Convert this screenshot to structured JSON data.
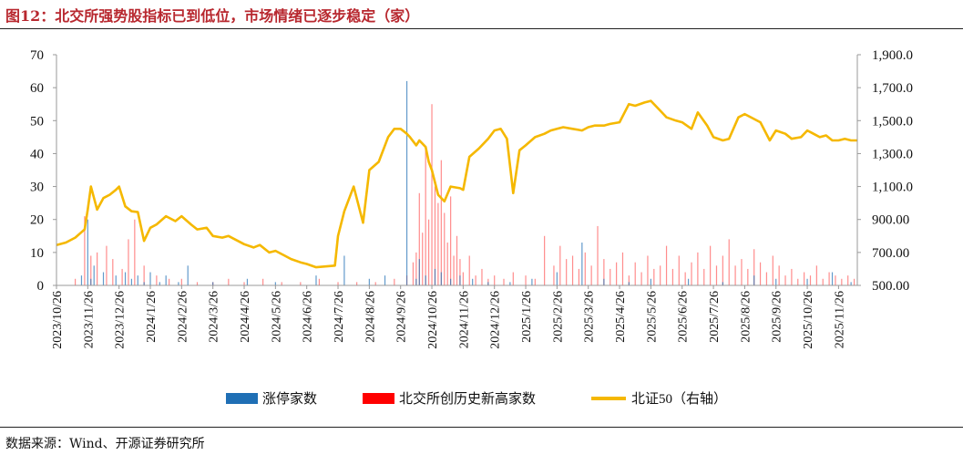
{
  "title": "图12：北交所强势股指标已到低位，市场情绪已逐步稳定（家）",
  "source": "数据来源：Wind、开源证券研究所",
  "colors": {
    "limit_up": "#1f6fb5",
    "new_high": "#ff0000",
    "index_line": "#f5b800",
    "title": "#b8282f"
  },
  "chart_data": {
    "type": "bar",
    "title": "图12：北交所强势股指标已到低位，市场情绪已逐步稳定（家）",
    "xlabel": "",
    "ylabel": "",
    "ylim": [
      0,
      70
    ],
    "y2lim": [
      500,
      1900
    ],
    "yticks": [
      "0",
      "10",
      "20",
      "30",
      "40",
      "50",
      "60",
      "70"
    ],
    "y2ticks": [
      "500.00",
      "700.00",
      "900.00",
      "1,100.0",
      "1,300.0",
      "1,500.0",
      "1,700.0",
      "1,900.0"
    ],
    "grid": false,
    "legend": "bottom",
    "categories": [
      "2023/10/26",
      "2023/11/26",
      "2023/12/26",
      "2024/1/26",
      "2024/2/26",
      "2024/3/26",
      "2024/4/26",
      "2024/5/26",
      "2024/6/26",
      "2024/7/26",
      "2024/8/26",
      "2024/9/26",
      "2024/10/26",
      "2024/11/26",
      "2024/12/26",
      "2025/1/26",
      "2025/2/26",
      "2025/3/26",
      "2025/4/26",
      "2025/5/26",
      "2025/6/26",
      "2025/7/26",
      "2025/8/26",
      "2025/9/26",
      "2025/10/26",
      "2025/11/26"
    ],
    "series": [
      {
        "name": "涨停家数",
        "type": "bar",
        "axis": "left",
        "x": [
          0.8,
          1.0,
          1.1,
          1.2,
          1.5,
          1.9,
          2.2,
          2.4,
          2.6,
          2.8,
          3.0,
          3.3,
          3.5,
          3.9,
          4.2,
          5.0,
          6.1,
          7.0,
          8.3,
          9.2,
          10.0,
          10.5,
          11.2,
          11.5,
          11.6,
          11.8,
          12.1,
          12.3,
          12.6,
          12.9,
          13.3,
          13.8,
          14.5,
          15.2,
          16.0,
          16.8,
          17.5,
          18.3,
          19.0,
          20.2,
          21.3,
          22.3,
          23.0,
          24.0,
          24.8,
          25.4
        ],
        "values": [
          3,
          20,
          2,
          6,
          4,
          3,
          4,
          2,
          3,
          1,
          4,
          1,
          3,
          1,
          6,
          1,
          2,
          1,
          3,
          9,
          2,
          3,
          62,
          2,
          8,
          3,
          5,
          4,
          2,
          3,
          2,
          1,
          1,
          2,
          4,
          13,
          2,
          1,
          2,
          2,
          1,
          3,
          2,
          2,
          4,
          1
        ]
      },
      {
        "name": "北交所创历史新高家数",
        "type": "bar",
        "axis": "left",
        "x": [
          0.6,
          0.9,
          1.1,
          1.3,
          1.6,
          1.8,
          2.1,
          2.3,
          2.5,
          2.8,
          3.2,
          3.6,
          4.0,
          4.5,
          5.0,
          5.5,
          6.0,
          6.6,
          7.2,
          7.8,
          8.4,
          9.0,
          9.6,
          10.2,
          10.8,
          11.2,
          11.4,
          11.5,
          11.6,
          11.7,
          11.8,
          11.9,
          12.0,
          12.1,
          12.2,
          12.3,
          12.4,
          12.5,
          12.6,
          12.7,
          12.8,
          12.9,
          13.0,
          13.2,
          13.4,
          13.6,
          13.8,
          14.0,
          14.3,
          14.6,
          15.0,
          15.3,
          15.6,
          15.9,
          16.1,
          16.3,
          16.5,
          16.7,
          16.9,
          17.1,
          17.3,
          17.5,
          17.7,
          17.9,
          18.1,
          18.3,
          18.5,
          18.7,
          18.9,
          19.1,
          19.3,
          19.5,
          19.7,
          19.9,
          20.1,
          20.3,
          20.5,
          20.7,
          20.9,
          21.1,
          21.3,
          21.5,
          21.7,
          21.9,
          22.1,
          22.3,
          22.5,
          22.7,
          22.9,
          23.1,
          23.3,
          23.5,
          23.7,
          23.9,
          24.1,
          24.3,
          24.5,
          24.7,
          24.9,
          25.1,
          25.3,
          25.5
        ],
        "values": [
          2,
          21,
          9,
          10,
          12,
          8,
          5,
          14,
          20,
          6,
          3,
          2,
          2,
          1,
          1,
          2,
          1,
          2,
          1,
          1,
          2,
          1,
          1,
          1,
          2,
          3,
          7,
          10,
          28,
          16,
          42,
          20,
          55,
          30,
          25,
          38,
          22,
          13,
          27,
          9,
          15,
          8,
          4,
          9,
          3,
          5,
          2,
          3,
          2,
          4,
          3,
          2,
          15,
          6,
          12,
          8,
          9,
          5,
          10,
          6,
          18,
          8,
          5,
          7,
          10,
          3,
          7,
          4,
          9,
          5,
          6,
          12,
          5,
          9,
          4,
          7,
          10,
          5,
          12,
          6,
          9,
          14,
          6,
          8,
          5,
          11,
          7,
          4,
          9,
          6,
          3,
          5,
          2,
          4,
          3,
          6,
          2,
          4,
          3,
          2,
          3,
          2
        ]
      },
      {
        "name": "北证50（右轴）",
        "type": "line",
        "axis": "right",
        "x": [
          0.0,
          0.3,
          0.6,
          0.9,
          1.0,
          1.1,
          1.3,
          1.5,
          1.7,
          1.9,
          2.0,
          2.2,
          2.4,
          2.6,
          2.8,
          3.0,
          3.2,
          3.5,
          3.8,
          4.0,
          4.3,
          4.5,
          4.8,
          5.0,
          5.3,
          5.5,
          5.8,
          6.0,
          6.3,
          6.5,
          6.8,
          7.0,
          7.3,
          7.5,
          7.8,
          8.0,
          8.3,
          8.6,
          8.9,
          9.0,
          9.2,
          9.5,
          9.8,
          10.0,
          10.3,
          10.6,
          10.8,
          11.0,
          11.2,
          11.3,
          11.5,
          11.6,
          11.8,
          11.9,
          12.0,
          12.2,
          12.4,
          12.6,
          12.9,
          13.0,
          13.2,
          13.5,
          13.8,
          14.0,
          14.2,
          14.4,
          14.6,
          14.8,
          15.0,
          15.3,
          15.6,
          15.8,
          16.0,
          16.2,
          16.5,
          16.8,
          17.0,
          17.2,
          17.4,
          17.5,
          17.7,
          18.0,
          18.3,
          18.5,
          18.8,
          19.0,
          19.3,
          19.5,
          19.8,
          20.0,
          20.3,
          20.5,
          20.8,
          21.0,
          21.3,
          21.5,
          21.8,
          22.0,
          22.3,
          22.5,
          22.8,
          23.0,
          23.3,
          23.5,
          23.8,
          24.0,
          24.2,
          24.4,
          24.6,
          24.8,
          25.0,
          25.2,
          25.4,
          25.6
        ],
        "values": [
          745,
          760,
          790,
          840,
          960,
          1100,
          960,
          1030,
          1050,
          1080,
          1100,
          980,
          950,
          945,
          770,
          850,
          870,
          920,
          890,
          920,
          870,
          840,
          850,
          800,
          790,
          800,
          770,
          750,
          730,
          745,
          700,
          710,
          680,
          660,
          640,
          630,
          610,
          615,
          620,
          800,
          950,
          1100,
          880,
          1200,
          1250,
          1400,
          1450,
          1450,
          1420,
          1400,
          1350,
          1380,
          1340,
          1250,
          1200,
          1050,
          1010,
          1100,
          1090,
          1080,
          1280,
          1330,
          1390,
          1440,
          1450,
          1390,
          1060,
          1320,
          1350,
          1400,
          1420,
          1440,
          1450,
          1460,
          1450,
          1440,
          1460,
          1470,
          1470,
          1470,
          1480,
          1490,
          1600,
          1590,
          1610,
          1620,
          1560,
          1520,
          1500,
          1490,
          1450,
          1550,
          1470,
          1400,
          1380,
          1390,
          1520,
          1540,
          1510,
          1490,
          1380,
          1440,
          1420,
          1390,
          1400,
          1440,
          1420,
          1400,
          1410,
          1380,
          1380,
          1390,
          1380,
          1380
        ]
      }
    ]
  }
}
